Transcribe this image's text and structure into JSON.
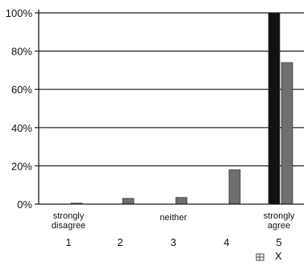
{
  "chart_data": {
    "type": "bar",
    "x": [
      1,
      2,
      3,
      4,
      5
    ],
    "category_labels": [
      "strongly disagree",
      "",
      "neither",
      "",
      "strongly agree"
    ],
    "series": [
      {
        "color": "#111111",
        "values": [
          0,
          0,
          0,
          0,
          100
        ]
      },
      {
        "color": "#6f6f6f",
        "values": [
          0.5,
          3,
          3.5,
          18,
          74
        ]
      }
    ],
    "xlabel": "X",
    "ylabel": "",
    "ylim": [
      0,
      100
    ],
    "yticks": [
      "0%",
      "20%",
      "40%",
      "60%",
      "80%",
      "100%"
    ],
    "grid": "horizontal"
  }
}
